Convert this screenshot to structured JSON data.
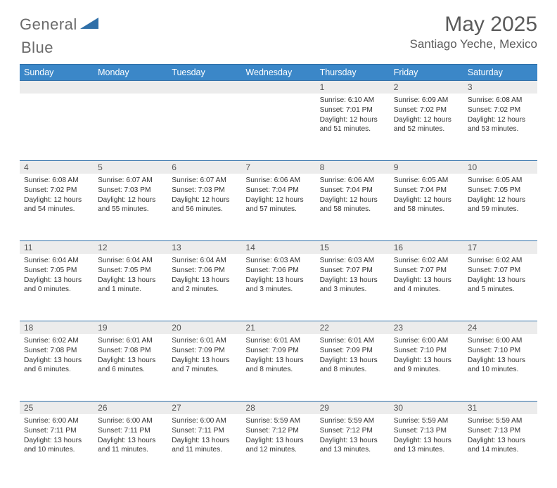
{
  "logo": {
    "word1": "General",
    "word2": "Blue"
  },
  "title": "May 2025",
  "location": "Santiago Yeche, Mexico",
  "colors": {
    "header_bg": "#3b87c8",
    "header_border": "#2f6fa8",
    "daynum_bg": "#ececec",
    "text": "#333333",
    "title_text": "#5a5a5a",
    "logo_text": "#6a6a6a",
    "logo_shape": "#2f6fa8"
  },
  "weekdays": [
    "Sunday",
    "Monday",
    "Tuesday",
    "Wednesday",
    "Thursday",
    "Friday",
    "Saturday"
  ],
  "weeks": [
    {
      "nums": [
        "",
        "",
        "",
        "",
        "1",
        "2",
        "3"
      ],
      "cells": [
        null,
        null,
        null,
        null,
        {
          "sunrise": "6:10 AM",
          "sunset": "7:01 PM",
          "daylight": "12 hours and 51 minutes."
        },
        {
          "sunrise": "6:09 AM",
          "sunset": "7:02 PM",
          "daylight": "12 hours and 52 minutes."
        },
        {
          "sunrise": "6:08 AM",
          "sunset": "7:02 PM",
          "daylight": "12 hours and 53 minutes."
        }
      ]
    },
    {
      "nums": [
        "4",
        "5",
        "6",
        "7",
        "8",
        "9",
        "10"
      ],
      "cells": [
        {
          "sunrise": "6:08 AM",
          "sunset": "7:02 PM",
          "daylight": "12 hours and 54 minutes."
        },
        {
          "sunrise": "6:07 AM",
          "sunset": "7:03 PM",
          "daylight": "12 hours and 55 minutes."
        },
        {
          "sunrise": "6:07 AM",
          "sunset": "7:03 PM",
          "daylight": "12 hours and 56 minutes."
        },
        {
          "sunrise": "6:06 AM",
          "sunset": "7:04 PM",
          "daylight": "12 hours and 57 minutes."
        },
        {
          "sunrise": "6:06 AM",
          "sunset": "7:04 PM",
          "daylight": "12 hours and 58 minutes."
        },
        {
          "sunrise": "6:05 AM",
          "sunset": "7:04 PM",
          "daylight": "12 hours and 58 minutes."
        },
        {
          "sunrise": "6:05 AM",
          "sunset": "7:05 PM",
          "daylight": "12 hours and 59 minutes."
        }
      ]
    },
    {
      "nums": [
        "11",
        "12",
        "13",
        "14",
        "15",
        "16",
        "17"
      ],
      "cells": [
        {
          "sunrise": "6:04 AM",
          "sunset": "7:05 PM",
          "daylight": "13 hours and 0 minutes."
        },
        {
          "sunrise": "6:04 AM",
          "sunset": "7:05 PM",
          "daylight": "13 hours and 1 minute."
        },
        {
          "sunrise": "6:04 AM",
          "sunset": "7:06 PM",
          "daylight": "13 hours and 2 minutes."
        },
        {
          "sunrise": "6:03 AM",
          "sunset": "7:06 PM",
          "daylight": "13 hours and 3 minutes."
        },
        {
          "sunrise": "6:03 AM",
          "sunset": "7:07 PM",
          "daylight": "13 hours and 3 minutes."
        },
        {
          "sunrise": "6:02 AM",
          "sunset": "7:07 PM",
          "daylight": "13 hours and 4 minutes."
        },
        {
          "sunrise": "6:02 AM",
          "sunset": "7:07 PM",
          "daylight": "13 hours and 5 minutes."
        }
      ]
    },
    {
      "nums": [
        "18",
        "19",
        "20",
        "21",
        "22",
        "23",
        "24"
      ],
      "cells": [
        {
          "sunrise": "6:02 AM",
          "sunset": "7:08 PM",
          "daylight": "13 hours and 6 minutes."
        },
        {
          "sunrise": "6:01 AM",
          "sunset": "7:08 PM",
          "daylight": "13 hours and 6 minutes."
        },
        {
          "sunrise": "6:01 AM",
          "sunset": "7:09 PM",
          "daylight": "13 hours and 7 minutes."
        },
        {
          "sunrise": "6:01 AM",
          "sunset": "7:09 PM",
          "daylight": "13 hours and 8 minutes."
        },
        {
          "sunrise": "6:01 AM",
          "sunset": "7:09 PM",
          "daylight": "13 hours and 8 minutes."
        },
        {
          "sunrise": "6:00 AM",
          "sunset": "7:10 PM",
          "daylight": "13 hours and 9 minutes."
        },
        {
          "sunrise": "6:00 AM",
          "sunset": "7:10 PM",
          "daylight": "13 hours and 10 minutes."
        }
      ]
    },
    {
      "nums": [
        "25",
        "26",
        "27",
        "28",
        "29",
        "30",
        "31"
      ],
      "cells": [
        {
          "sunrise": "6:00 AM",
          "sunset": "7:11 PM",
          "daylight": "13 hours and 10 minutes."
        },
        {
          "sunrise": "6:00 AM",
          "sunset": "7:11 PM",
          "daylight": "13 hours and 11 minutes."
        },
        {
          "sunrise": "6:00 AM",
          "sunset": "7:11 PM",
          "daylight": "13 hours and 11 minutes."
        },
        {
          "sunrise": "5:59 AM",
          "sunset": "7:12 PM",
          "daylight": "13 hours and 12 minutes."
        },
        {
          "sunrise": "5:59 AM",
          "sunset": "7:12 PM",
          "daylight": "13 hours and 13 minutes."
        },
        {
          "sunrise": "5:59 AM",
          "sunset": "7:13 PM",
          "daylight": "13 hours and 13 minutes."
        },
        {
          "sunrise": "5:59 AM",
          "sunset": "7:13 PM",
          "daylight": "13 hours and 14 minutes."
        }
      ]
    }
  ],
  "labels": {
    "sunrise": "Sunrise: ",
    "sunset": "Sunset: ",
    "daylight": "Daylight: "
  }
}
